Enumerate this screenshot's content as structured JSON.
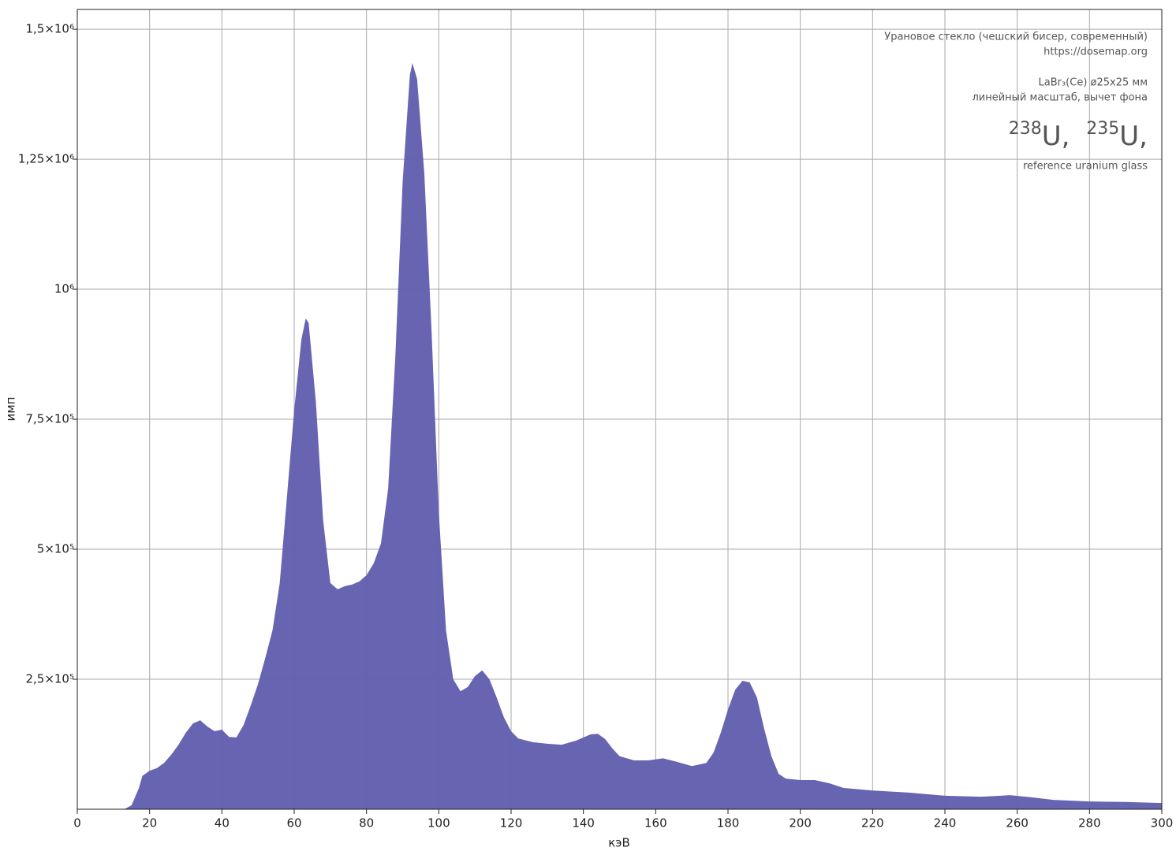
{
  "chart_data": {
    "type": "area",
    "x_label": "кэВ",
    "y_label": "имп",
    "annotations": [
      "Урановое стекло (чешский бисер, современный)",
      "https://dosemap.org",
      "LaBr₃(Ce) ø25x25 мм",
      "линейный масштаб, вычет фона",
      "reference uranium glass"
    ],
    "isotopes": [
      {
        "mass": "238",
        "symbol": "U,"
      },
      {
        "mass": "235",
        "symbol": "U,"
      }
    ],
    "color": "#6461b0",
    "x": [
      0,
      13,
      15,
      17,
      18,
      20,
      22,
      24,
      26,
      28,
      30,
      32,
      34,
      36,
      38,
      40,
      42,
      44,
      46,
      48,
      50,
      52,
      54,
      56,
      58,
      60,
      62,
      63.2,
      64,
      66,
      68,
      70,
      72,
      74,
      76,
      78,
      80,
      82,
      84,
      86,
      88,
      90,
      92,
      92.7,
      94,
      96,
      98,
      100,
      102,
      104,
      106,
      108,
      110,
      112,
      114,
      116,
      118,
      120,
      122,
      126,
      130,
      134,
      138,
      142,
      144,
      146,
      148,
      150,
      154,
      158,
      162,
      166,
      170,
      174,
      176,
      178,
      180,
      182,
      184,
      186,
      188,
      190,
      192,
      194,
      196,
      200,
      204,
      208,
      212,
      220,
      230,
      240,
      250,
      258,
      264,
      270,
      280,
      290,
      300
    ],
    "values": [
      0,
      0,
      7500,
      40000,
      64000,
      74000,
      79000,
      89000,
      105000,
      124000,
      147000,
      165000,
      171000,
      159000,
      150000,
      153000,
      139000,
      138000,
      162000,
      200000,
      241000,
      291000,
      344000,
      435000,
      601000,
      768000,
      904000,
      944000,
      935000,
      783000,
      556000,
      435000,
      423000,
      429000,
      432000,
      438000,
      450000,
      473000,
      511000,
      617000,
      874000,
      1207000,
      1412000,
      1435000,
      1404000,
      1222000,
      920000,
      571000,
      344000,
      250000,
      227000,
      235000,
      256000,
      267000,
      250000,
      215000,
      177000,
      150000,
      136000,
      129000,
      126000,
      124000,
      132000,
      144000,
      145000,
      135000,
      117000,
      102000,
      94000,
      94000,
      98000,
      91000,
      83000,
      89000,
      109000,
      147000,
      192000,
      230000,
      247000,
      244000,
      215000,
      155000,
      102000,
      68000,
      59000,
      56000,
      56000,
      50000,
      41000,
      36000,
      32000,
      26000,
      24000,
      27000,
      23000,
      18000,
      15000,
      14000,
      12000
    ],
    "xlim": [
      0,
      300
    ],
    "xticks": [
      0,
      20,
      40,
      60,
      80,
      100,
      120,
      140,
      160,
      180,
      200,
      220,
      240,
      260,
      280,
      300
    ],
    "ylim": [
      0,
      1538000
    ],
    "yticks": [
      {
        "value": 250000,
        "label": "2,5×10⁵"
      },
      {
        "value": 500000,
        "label": "5×10⁵"
      },
      {
        "value": 750000,
        "label": "7,5×10⁵"
      },
      {
        "value": 1000000,
        "label": "10⁶"
      },
      {
        "value": 1250000,
        "label": "1,25×10⁶"
      },
      {
        "value": 1500000,
        "label": "1,5×10⁶"
      }
    ],
    "grid": true
  }
}
